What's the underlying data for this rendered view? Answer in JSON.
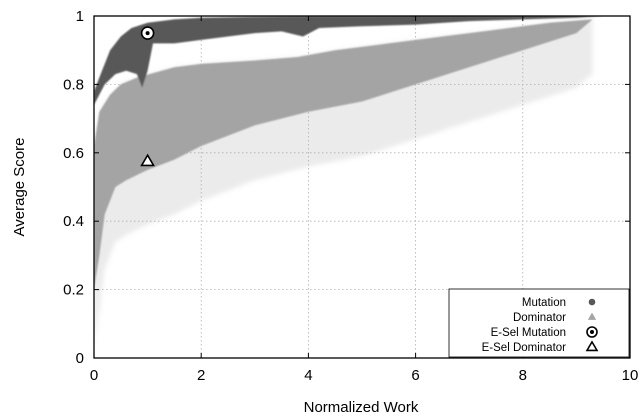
{
  "chart_data": {
    "type": "scatter",
    "title": "",
    "xlabel": "Normalized Work",
    "ylabel": "Average Score",
    "xlim": [
      0,
      10
    ],
    "ylim": [
      0,
      1
    ],
    "x_ticks": [
      "0",
      "2",
      "4",
      "6",
      "8",
      "10"
    ],
    "y_ticks": [
      "0",
      "0.2",
      "0.4",
      "0.6",
      "0.8",
      "1"
    ],
    "grid": true,
    "legend_position": "bottom-right",
    "colors": {
      "Mutation": "#585858",
      "Dominator": "#a4a4a4",
      "E-Sel Mutation": "#000000",
      "E-Sel Dominator": "#000000"
    },
    "series": [
      {
        "name": "Mutation",
        "marker": "circle-filled",
        "upper_curve": [
          [
            0,
            0.78
          ],
          [
            0.15,
            0.84
          ],
          [
            0.3,
            0.9
          ],
          [
            0.5,
            0.94
          ],
          [
            0.7,
            0.965
          ],
          [
            1,
            0.98
          ],
          [
            1.5,
            0.99
          ],
          [
            2,
            0.995
          ],
          [
            3,
            0.998
          ],
          [
            4,
            0.999
          ],
          [
            6,
            1.0
          ],
          [
            8,
            1.0
          ],
          [
            9.5,
            1.0
          ]
        ],
        "lower_curve": [
          [
            0,
            0.74
          ],
          [
            0.2,
            0.8
          ],
          [
            0.4,
            0.83
          ],
          [
            0.6,
            0.84
          ],
          [
            0.8,
            0.83
          ],
          [
            0.9,
            0.79
          ],
          [
            1.0,
            0.84
          ],
          [
            1.1,
            0.92
          ],
          [
            1.5,
            0.92
          ],
          [
            2,
            0.93
          ],
          [
            2.5,
            0.94
          ],
          [
            3,
            0.95
          ],
          [
            3.5,
            0.955
          ],
          [
            3.9,
            0.94
          ],
          [
            4.2,
            0.965
          ],
          [
            5,
            0.97
          ],
          [
            6,
            0.975
          ],
          [
            7,
            0.985
          ],
          [
            8,
            0.99
          ],
          [
            9,
            0.995
          ],
          [
            9.5,
            1.0
          ]
        ]
      },
      {
        "name": "Dominator",
        "marker": "triangle-filled",
        "upper_curve": [
          [
            0,
            0.62
          ],
          [
            0.1,
            0.72
          ],
          [
            0.3,
            0.77
          ],
          [
            0.5,
            0.8
          ],
          [
            0.8,
            0.82
          ],
          [
            1.5,
            0.85
          ],
          [
            2,
            0.86
          ],
          [
            3,
            0.87
          ],
          [
            3.8,
            0.88
          ],
          [
            4.5,
            0.9
          ],
          [
            5.5,
            0.92
          ],
          [
            6.5,
            0.94
          ],
          [
            7.5,
            0.96
          ],
          [
            8.5,
            0.98
          ],
          [
            9.3,
            0.99
          ]
        ],
        "lower_curve": [
          [
            0,
            0.2
          ],
          [
            0.1,
            0.3
          ],
          [
            0.2,
            0.42
          ],
          [
            0.4,
            0.5
          ],
          [
            0.6,
            0.52
          ],
          [
            1.0,
            0.55
          ],
          [
            1.5,
            0.58
          ],
          [
            2,
            0.62
          ],
          [
            3,
            0.68
          ],
          [
            4,
            0.72
          ],
          [
            5,
            0.75
          ],
          [
            6,
            0.8
          ],
          [
            7,
            0.85
          ],
          [
            8,
            0.9
          ],
          [
            9,
            0.95
          ],
          [
            9.3,
            0.99
          ]
        ]
      },
      {
        "name": "E-Sel Mutation",
        "marker": "circle-open",
        "points": [
          [
            1.0,
            0.95
          ]
        ]
      },
      {
        "name": "E-Sel Dominator",
        "marker": "triangle-open",
        "points": [
          [
            1.0,
            0.575
          ]
        ]
      }
    ]
  }
}
